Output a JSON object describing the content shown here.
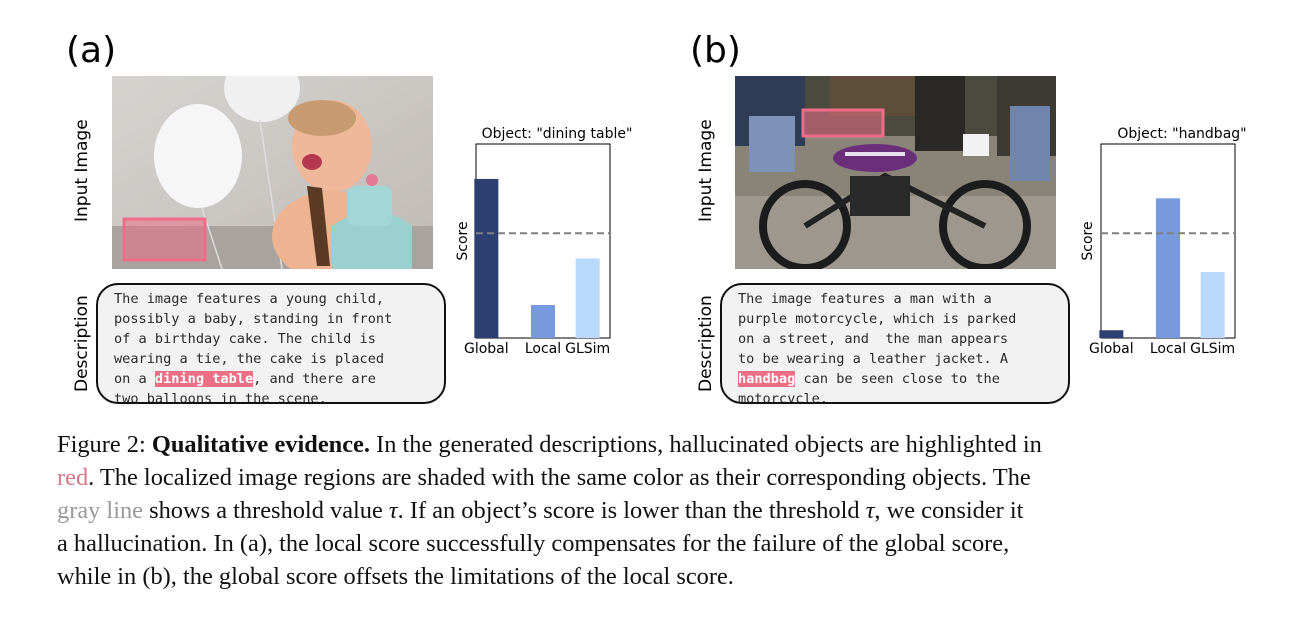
{
  "panels": [
    {
      "label": "(a)",
      "input_label": "Input Image",
      "desc_label": "Description",
      "description_lines": [
        [
          "The image features a young child,"
        ],
        [
          "possibly a baby, standing in front"
        ],
        [
          "of a birthday cake. The child is"
        ],
        [
          "wearing a tie, the cake is placed"
        ],
        [
          "on a ",
          {
            "hl": "dining table"
          },
          ", and there are"
        ],
        [
          "two balloons in the scene."
        ]
      ]
    },
    {
      "label": "(b)",
      "input_label": "Input Image",
      "desc_label": "Description",
      "description_lines": [
        [
          "The image features a man with a"
        ],
        [
          "purple motorcycle, which is parked"
        ],
        [
          "on a street, and  the man appears"
        ],
        [
          "to be wearing a leather jacket. A"
        ],
        [
          {
            "hl": "handbag"
          },
          " can be seen close to the"
        ],
        [
          "motorcycle."
        ]
      ]
    }
  ],
  "chart_data": [
    {
      "type": "bar",
      "title": "Object: \"dining table\"",
      "ylabel": "Score",
      "categories": [
        "Global",
        "Local",
        "GLSim"
      ],
      "values": [
        0.82,
        0.17,
        0.41
      ],
      "threshold": 0.54,
      "ylim": [
        0,
        1
      ],
      "colors": [
        "#2e3f72",
        "#7799dd",
        "#b9dafa"
      ],
      "threshold_color": "#808080"
    },
    {
      "type": "bar",
      "title": "Object: \"handbag\"",
      "ylabel": "Score",
      "categories": [
        "Global",
        "Local",
        "GLSim"
      ],
      "values": [
        0.04,
        0.72,
        0.34
      ],
      "threshold": 0.54,
      "ylim": [
        0,
        1
      ],
      "colors": [
        "#2e3f72",
        "#7799dd",
        "#b9dafa"
      ],
      "threshold_color": "#808080"
    }
  ],
  "caption": {
    "prefix": "Figure 2: ",
    "bold": "Qualitative evidence.",
    "line1_rest": " In the generated descriptions, hallucinated objects are highlighted in",
    "red_word": "red",
    "line2_rest": ". The localized image regions are shaded with the same color as their corresponding objects. The",
    "gray_words": "gray line",
    "line3_a": " shows a threshold value ",
    "tau1": "τ",
    "line3_b": ". If an object’s score is lower than the threshold ",
    "tau2": "τ",
    "line3_c": ", we consider it",
    "line4": "a hallucination. In (a), the local score successfully compensates for the failure of the global score,",
    "line5": "while in (b), the global score offsets the limitations of the local score."
  },
  "colors": {
    "highlight": "#ec6f86",
    "red_text": "#d9758a",
    "gray_text": "#9a9a9a"
  }
}
